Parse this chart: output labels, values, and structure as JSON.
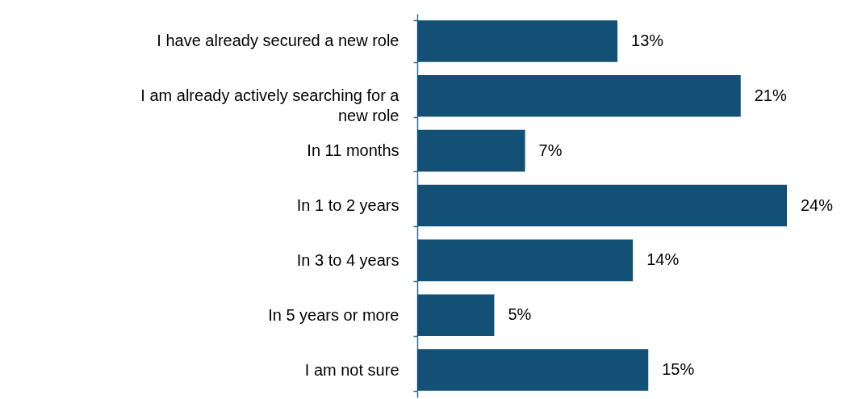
{
  "chart_data": {
    "type": "bar",
    "orientation": "horizontal",
    "categories": [
      "I have already secured a new role",
      "I am already actively searching for a new role",
      "In 11 months",
      "In 1 to 2 years",
      "In 3 to 4 years",
      "In 5 years or more",
      "I am not sure"
    ],
    "values": [
      13,
      21,
      7,
      24,
      14,
      5,
      15
    ],
    "value_labels": [
      "13%",
      "21%",
      "7%",
      "24%",
      "14%",
      "5%",
      "15%"
    ],
    "color": "#125075"
  }
}
